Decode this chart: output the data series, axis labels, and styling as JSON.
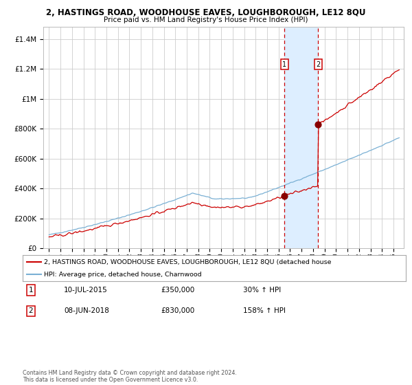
{
  "title": "2, HASTINGS ROAD, WOODHOUSE EAVES, LOUGHBOROUGH, LE12 8QU",
  "subtitle": "Price paid vs. HM Land Registry's House Price Index (HPI)",
  "legend_line1": "2, HASTINGS ROAD, WOODHOUSE EAVES, LOUGHBOROUGH, LE12 8QU (detached house",
  "legend_line2": "HPI: Average price, detached house, Charnwood",
  "sale1_date": "10-JUL-2015",
  "sale1_price": 350000,
  "sale1_hpi_pct": "30% ↑ HPI",
  "sale2_date": "08-JUN-2018",
  "sale2_price": 830000,
  "sale2_hpi_pct": "158% ↑ HPI",
  "sale1_label": "1",
  "sale2_label": "2",
  "sale1_year": 2015.52,
  "sale2_year": 2018.44,
  "hpi_color": "#7ab0d4",
  "price_color": "#cc0000",
  "dot_color": "#880000",
  "vline_color": "#cc0000",
  "shade_color": "#ddeeff",
  "bg_color": "#ffffff",
  "grid_color": "#cccccc",
  "ylabel_vals": [
    "£0",
    "£200K",
    "£400K",
    "£600K",
    "£800K",
    "£1M",
    "£1.2M",
    "£1.4M"
  ],
  "ylim": [
    0,
    1500000
  ],
  "footer": "Contains HM Land Registry data © Crown copyright and database right 2024.\nThis data is licensed under the Open Government Licence v3.0."
}
